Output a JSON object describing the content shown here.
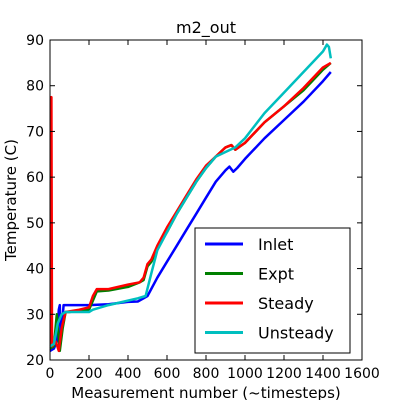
{
  "chart_data": {
    "type": "line",
    "title": "m2_out",
    "xlabel": "Measurement number (~timesteps)",
    "ylabel": "Temperature (C)",
    "xlim": [
      0,
      1600
    ],
    "ylim": [
      20,
      90
    ],
    "xticks": [
      0,
      200,
      400,
      600,
      800,
      1000,
      1200,
      1400,
      1600
    ],
    "yticks": [
      20,
      30,
      40,
      50,
      60,
      70,
      80,
      90
    ],
    "grid": false,
    "legend_position": "lower-right",
    "series": [
      {
        "name": "Inlet",
        "color": "#0000ff",
        "points": [
          [
            0,
            22
          ],
          [
            20,
            22.5
          ],
          [
            35,
            24
          ],
          [
            45,
            31
          ],
          [
            50,
            32
          ],
          [
            55,
            24
          ],
          [
            70,
            32
          ],
          [
            100,
            32
          ],
          [
            200,
            32
          ],
          [
            300,
            32.2
          ],
          [
            400,
            32.7
          ],
          [
            450,
            32.8
          ],
          [
            480,
            33.5
          ],
          [
            500,
            34
          ],
          [
            550,
            38
          ],
          [
            600,
            41.5
          ],
          [
            650,
            45
          ],
          [
            700,
            48.5
          ],
          [
            750,
            52
          ],
          [
            800,
            55.5
          ],
          [
            850,
            59
          ],
          [
            900,
            61.5
          ],
          [
            920,
            62.3
          ],
          [
            940,
            61.2
          ],
          [
            960,
            62
          ],
          [
            1000,
            64
          ],
          [
            1100,
            68.5
          ],
          [
            1200,
            72.5
          ],
          [
            1300,
            76.5
          ],
          [
            1400,
            81
          ],
          [
            1440,
            83
          ]
        ]
      },
      {
        "name": "Expt",
        "color": "#008000",
        "points": [
          [
            0,
            22.5
          ],
          [
            20,
            23
          ],
          [
            35,
            30
          ],
          [
            50,
            22
          ],
          [
            65,
            27
          ],
          [
            80,
            30.5
          ],
          [
            100,
            30.5
          ],
          [
            150,
            30.8
          ],
          [
            200,
            31
          ],
          [
            220,
            33
          ],
          [
            240,
            35
          ],
          [
            300,
            35.2
          ],
          [
            400,
            36
          ],
          [
            460,
            37
          ],
          [
            480,
            37.5
          ],
          [
            500,
            40.5
          ],
          [
            520,
            41.5
          ],
          [
            550,
            44.5
          ],
          [
            600,
            48
          ],
          [
            650,
            52
          ],
          [
            700,
            55.5
          ],
          [
            750,
            59
          ],
          [
            800,
            62
          ],
          [
            850,
            64.5
          ],
          [
            900,
            66.5
          ],
          [
            930,
            67
          ],
          [
            950,
            66
          ],
          [
            1000,
            67.5
          ],
          [
            1100,
            72
          ],
          [
            1200,
            75.5
          ],
          [
            1300,
            79
          ],
          [
            1400,
            83.5
          ],
          [
            1440,
            85
          ]
        ]
      },
      {
        "name": "Steady",
        "color": "#ff0000",
        "points": [
          [
            5,
            23
          ],
          [
            7,
            77.5
          ],
          [
            10,
            23
          ],
          [
            30,
            24
          ],
          [
            45,
            22
          ],
          [
            60,
            27
          ],
          [
            80,
            30.5
          ],
          [
            150,
            31
          ],
          [
            200,
            31.5
          ],
          [
            220,
            34
          ],
          [
            240,
            35.5
          ],
          [
            300,
            35.5
          ],
          [
            400,
            36.5
          ],
          [
            460,
            37
          ],
          [
            480,
            38
          ],
          [
            500,
            41
          ],
          [
            520,
            42
          ],
          [
            550,
            45
          ],
          [
            600,
            49
          ],
          [
            650,
            52.5
          ],
          [
            700,
            56
          ],
          [
            750,
            59.5
          ],
          [
            800,
            62.5
          ],
          [
            850,
            64.5
          ],
          [
            900,
            66.5
          ],
          [
            930,
            67
          ],
          [
            950,
            66
          ],
          [
            1000,
            67.5
          ],
          [
            1100,
            72
          ],
          [
            1200,
            75.5
          ],
          [
            1300,
            79.5
          ],
          [
            1400,
            84
          ],
          [
            1440,
            85
          ]
        ]
      },
      {
        "name": "Unsteady",
        "color": "#00bfbf",
        "points": [
          [
            0,
            23
          ],
          [
            20,
            23.5
          ],
          [
            40,
            28
          ],
          [
            60,
            30
          ],
          [
            80,
            30.5
          ],
          [
            150,
            30.5
          ],
          [
            200,
            30.5
          ],
          [
            220,
            31
          ],
          [
            300,
            32
          ],
          [
            350,
            32.5
          ],
          [
            400,
            33
          ],
          [
            450,
            33.5
          ],
          [
            490,
            34
          ],
          [
            520,
            39
          ],
          [
            550,
            44
          ],
          [
            600,
            48
          ],
          [
            650,
            52
          ],
          [
            700,
            55.5
          ],
          [
            750,
            59
          ],
          [
            800,
            62
          ],
          [
            850,
            64.5
          ],
          [
            900,
            65.5
          ],
          [
            950,
            66.5
          ],
          [
            1000,
            68.5
          ],
          [
            1100,
            74
          ],
          [
            1200,
            78.5
          ],
          [
            1300,
            83
          ],
          [
            1400,
            87.5
          ],
          [
            1420,
            89
          ],
          [
            1430,
            88.5
          ],
          [
            1440,
            86
          ]
        ]
      }
    ]
  }
}
